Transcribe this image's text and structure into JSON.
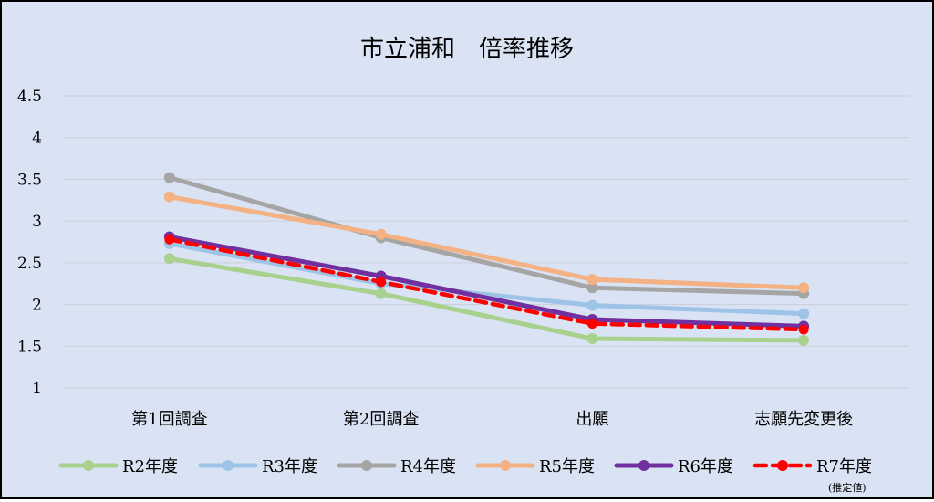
{
  "chart_data": {
    "type": "line",
    "title": "市立浦和　倍率推移",
    "xlabel": "",
    "ylabel": "",
    "ylim": [
      1,
      4.5
    ],
    "yticks": [
      "1",
      "1.5",
      "2",
      "2.5",
      "3",
      "3.5",
      "4",
      "4.5"
    ],
    "categories": [
      "第1回調査",
      "第2回調査",
      "出願",
      "志願先変更後"
    ],
    "grid": true,
    "legend_position": "bottom",
    "background": "#dae3f3",
    "series": [
      {
        "name": "R2年度",
        "color": "#a9d18e",
        "dashed": false,
        "values": [
          2.55,
          2.13,
          1.59,
          1.57
        ]
      },
      {
        "name": "R3年度",
        "color": "#9dc3e6",
        "dashed": false,
        "values": [
          2.73,
          2.25,
          1.99,
          1.89
        ]
      },
      {
        "name": "R4年度",
        "color": "#a5a5a5",
        "dashed": false,
        "values": [
          3.52,
          2.8,
          2.2,
          2.13
        ]
      },
      {
        "name": "R5年度",
        "color": "#f4b183",
        "dashed": false,
        "values": [
          3.29,
          2.84,
          2.3,
          2.2
        ]
      },
      {
        "name": "R6年度",
        "color": "#7030a0",
        "dashed": false,
        "values": [
          2.81,
          2.34,
          1.82,
          1.74
        ]
      },
      {
        "name": "R7年度",
        "color": "#ff0000",
        "dashed": true,
        "values": [
          2.78,
          2.27,
          1.77,
          1.7
        ],
        "note": "(推定値)"
      }
    ]
  }
}
